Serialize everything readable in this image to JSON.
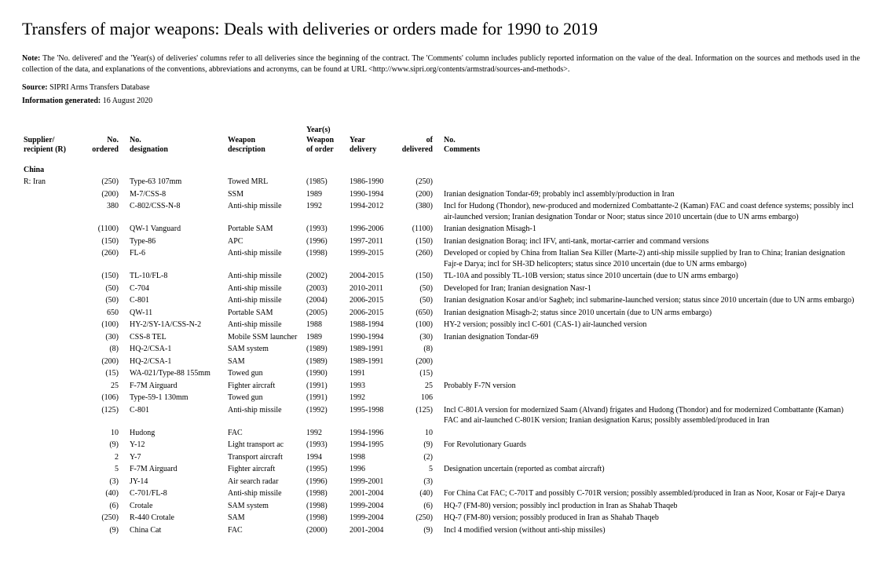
{
  "title": "Transfers of major weapons: Deals with deliveries or orders made for 1990 to 2019",
  "note_label": "Note:",
  "note_text": "The 'No. delivered' and the 'Year(s) of deliveries' columns refer to all deliveries since the beginning of the contract. The 'Comments' column includes publicly reported information on the value of the deal. Information on the sources and methods used in the collection of the data, and explanations of the conventions, abbreviations and acronyms, can be found at URL <http://www.sipri.org/contents/armstrad/sources-and-methods>.",
  "source_label": "Source:",
  "source_text": "SIPRI Arms Transfers Database",
  "info_gen_label": "Information generated:",
  "info_gen_text": "16 August 2020",
  "headers": {
    "supplier": "Supplier/\nrecipient (R)",
    "ordered": "No.\nordered",
    "designation": "No.\ndesignation",
    "wdesc": "Weapon\ndescription",
    "yorder": "Year(s)\nWeapon\nof order",
    "ydelivery": "Year\ndelivery",
    "ndelivered": "of\ndelivered",
    "comments": "No.\nComments"
  },
  "supplier": "China",
  "recipient": "R: Iran",
  "rows": [
    {
      "ord": "(250)",
      "des": "Type-63 107mm",
      "wdesc": "Towed MRL",
      "yord": "(1985)",
      "ydel": "1986-1990",
      "ndel": "(250)",
      "com": ""
    },
    {
      "ord": "(200)",
      "des": "M-7/CSS-8",
      "wdesc": "SSM",
      "yord": "1989",
      "ydel": "1990-1994",
      "ndel": "(200)",
      "com": "Iranian designation Tondar-69; probably incl assembly/production in Iran"
    },
    {
      "ord": "380",
      "des": "C-802/CSS-N-8",
      "wdesc": "Anti-ship missile",
      "yord": "1992",
      "ydel": "1994-2012",
      "ndel": "(380)",
      "com": "Incl for Hudong (Thondor), new-produced and modernized Combattante-2 (Kaman) FAC and coast defence systems; possibly incl air-launched version; Iranian designation Tondar or Noor; status since 2010 uncertain (due to UN arms embargo)"
    },
    {
      "ord": "(1100)",
      "des": "QW-1 Vanguard",
      "wdesc": "Portable SAM",
      "yord": "(1993)",
      "ydel": "1996-2006",
      "ndel": "(1100)",
      "com": "Iranian designation Misagh-1"
    },
    {
      "ord": "(150)",
      "des": "Type-86",
      "wdesc": "APC",
      "yord": "(1996)",
      "ydel": "1997-2011",
      "ndel": "(150)",
      "com": "Iranian designation Boraq; incl IFV, anti-tank, mortar-carrier and command versions"
    },
    {
      "ord": "(260)",
      "des": "FL-6",
      "wdesc": "Anti-ship missile",
      "yord": "(1998)",
      "ydel": "1999-2015",
      "ndel": "(260)",
      "com": "Developed or copied by China from Italian Sea Killer (Marte-2) anti-ship missile supplied by Iran to China; Iranian designation Fajr-e Darya; incl for SH-3D helicopters; status since 2010 uncertain (due to UN arms embargo)"
    },
    {
      "ord": "(150)",
      "des": "TL-10/FL-8",
      "wdesc": "Anti-ship missile",
      "yord": "(2002)",
      "ydel": "2004-2015",
      "ndel": "(150)",
      "com": "TL-10A and possibly TL-10B version; status since 2010 uncertain (due to UN arms embargo)"
    },
    {
      "ord": "(50)",
      "des": "C-704",
      "wdesc": "Anti-ship missile",
      "yord": "(2003)",
      "ydel": "2010-2011",
      "ndel": "(50)",
      "com": "Developed for Iran; Iranian designation Nasr-1"
    },
    {
      "ord": "(50)",
      "des": "C-801",
      "wdesc": "Anti-ship missile",
      "yord": "(2004)",
      "ydel": "2006-2015",
      "ndel": "(50)",
      "com": "Iranian designation Kosar and/or Sagheb; incl submarine-launched version; status since 2010 uncertain (due to UN arms embargo)"
    },
    {
      "ord": "650",
      "des": "QW-11",
      "wdesc": "Portable SAM",
      "yord": "(2005)",
      "ydel": "2006-2015",
      "ndel": "(650)",
      "com": "Iranian designation Misagh-2; status since 2010 uncertain (due to UN arms embargo)"
    },
    {
      "ord": "(100)",
      "des": "HY-2/SY-1A/CSS-N-2",
      "wdesc": "Anti-ship missile",
      "yord": "1988",
      "ydel": "1988-1994",
      "ndel": "(100)",
      "com": "HY-2 version; possibly incl C-601 (CAS-1) air-launched version"
    },
    {
      "ord": "(30)",
      "des": "CSS-8 TEL",
      "wdesc": "Mobile SSM launcher",
      "yord": "1989",
      "ydel": "1990-1994",
      "ndel": "(30)",
      "com": "Iranian designation Tondar-69"
    },
    {
      "ord": "(8)",
      "des": "HQ-2/CSA-1",
      "wdesc": "SAM system",
      "yord": "(1989)",
      "ydel": "1989-1991",
      "ndel": "(8)",
      "com": ""
    },
    {
      "ord": "(200)",
      "des": "HQ-2/CSA-1",
      "wdesc": "SAM",
      "yord": "(1989)",
      "ydel": "1989-1991",
      "ndel": "(200)",
      "com": ""
    },
    {
      "ord": "(15)",
      "des": "WA-021/Type-88 155mm",
      "wdesc": "Towed gun",
      "yord": "(1990)",
      "ydel": "1991",
      "ndel": "(15)",
      "com": ""
    },
    {
      "ord": "25",
      "des": "F-7M Airguard",
      "wdesc": "Fighter aircraft",
      "yord": "(1991)",
      "ydel": "1993",
      "ndel": "25",
      "com": "Probably F-7N version"
    },
    {
      "ord": "(106)",
      "des": "Type-59-1 130mm",
      "wdesc": "Towed gun",
      "yord": "(1991)",
      "ydel": "1992",
      "ndel": "106",
      "com": ""
    },
    {
      "ord": "(125)",
      "des": "C-801",
      "wdesc": "Anti-ship missile",
      "yord": "(1992)",
      "ydel": "1995-1998",
      "ndel": "(125)",
      "com": "Incl C-801A version for modernized Saam (Alvand) frigates and Hudong (Thondor) and for modernized Combattante (Kaman) FAC and air-launched C-801K version; Iranian designation Karus; possibly assembled/produced in Iran"
    },
    {
      "ord": "10",
      "des": "Hudong",
      "wdesc": "FAC",
      "yord": "1992",
      "ydel": "1994-1996",
      "ndel": "10",
      "com": ""
    },
    {
      "ord": "(9)",
      "des": "Y-12",
      "wdesc": "Light transport ac",
      "yord": "(1993)",
      "ydel": "1994-1995",
      "ndel": "(9)",
      "com": "For Revolutionary Guards"
    },
    {
      "ord": "2",
      "des": "Y-7",
      "wdesc": "Transport aircraft",
      "yord": "1994",
      "ydel": "1998",
      "ndel": "(2)",
      "com": ""
    },
    {
      "ord": "5",
      "des": "F-7M Airguard",
      "wdesc": "Fighter aircraft",
      "yord": "(1995)",
      "ydel": "1996",
      "ndel": "5",
      "com": "Designation uncertain (reported as combat aircraft)"
    },
    {
      "ord": "(3)",
      "des": "JY-14",
      "wdesc": "Air search radar",
      "yord": "(1996)",
      "ydel": "1999-2001",
      "ndel": "(3)",
      "com": ""
    },
    {
      "ord": "(40)",
      "des": "C-701/FL-8",
      "wdesc": "Anti-ship missile",
      "yord": "(1998)",
      "ydel": "2001-2004",
      "ndel": "(40)",
      "com": "For China Cat FAC; C-701T and possibly C-701R version; possibly assembled/produced in Iran as Noor, Kosar or Fajr-e Darya"
    },
    {
      "ord": "(6)",
      "des": "Crotale",
      "wdesc": "SAM system",
      "yord": "(1998)",
      "ydel": "1999-2004",
      "ndel": "(6)",
      "com": "HQ-7 (FM-80) version; possibly incl production in Iran as Shahab Thaqeb"
    },
    {
      "ord": "(250)",
      "des": "R-440 Crotale",
      "wdesc": "SAM",
      "yord": "(1998)",
      "ydel": "1999-2004",
      "ndel": "(250)",
      "com": "HQ-7 (FM-80) version; possibly produced in Iran as Shahab Thaqeb"
    },
    {
      "ord": "(9)",
      "des": "China Cat",
      "wdesc": "FAC",
      "yord": "(2000)",
      "ydel": "2001-2004",
      "ndel": "(9)",
      "com": "Incl 4 modified version (without anti-ship missiles)"
    }
  ]
}
